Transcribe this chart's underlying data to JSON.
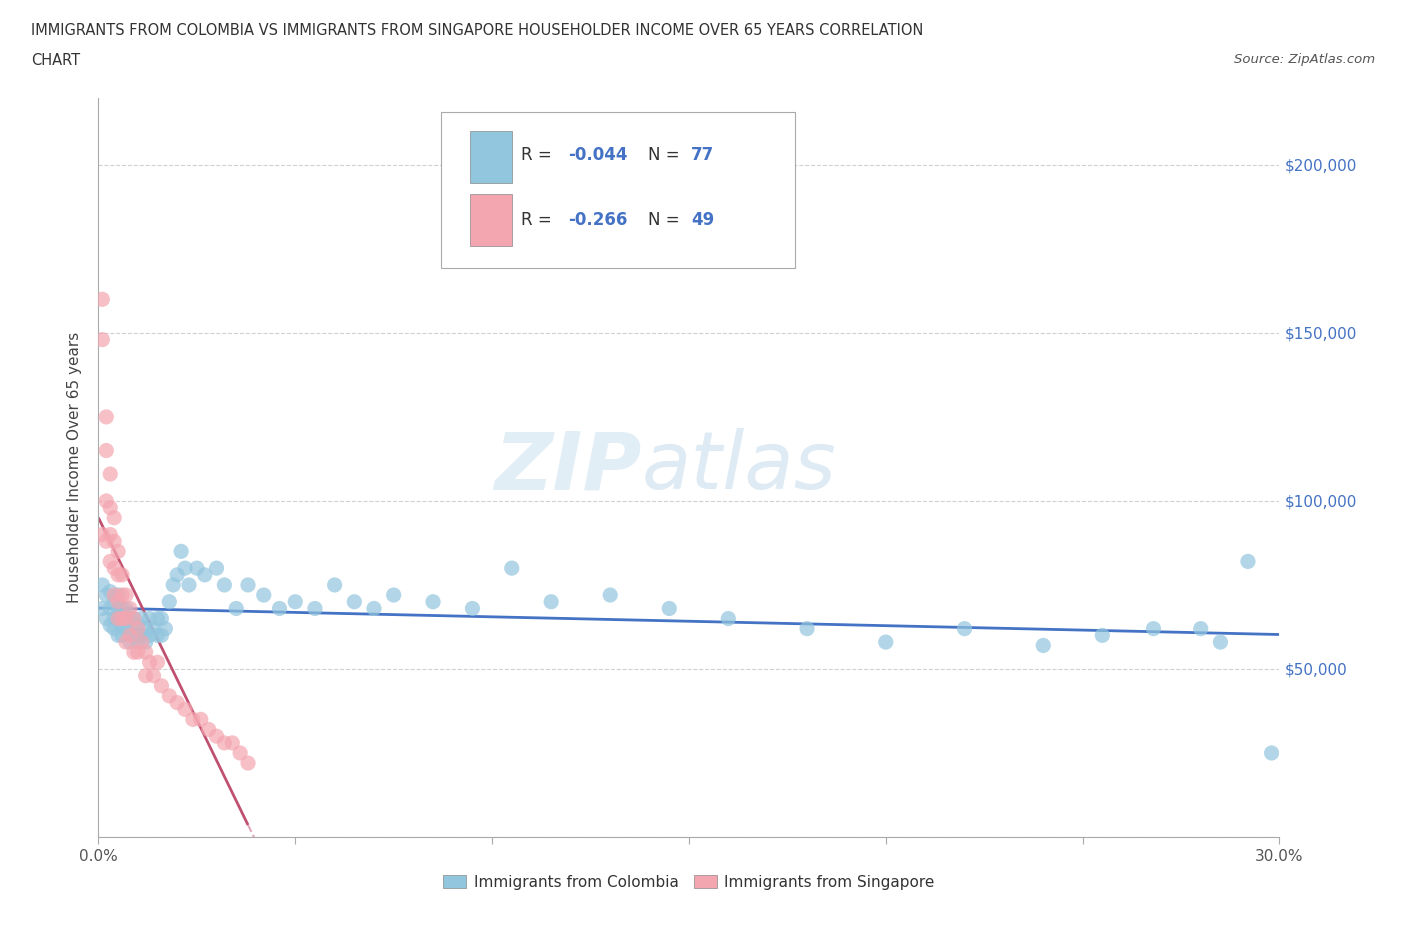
{
  "title_line1": "IMMIGRANTS FROM COLOMBIA VS IMMIGRANTS FROM SINGAPORE HOUSEHOLDER INCOME OVER 65 YEARS CORRELATION",
  "title_line2": "CHART",
  "source_text": "Source: ZipAtlas.com",
  "ylabel": "Householder Income Over 65 years",
  "xlim": [
    0.0,
    0.3
  ],
  "ylim": [
    0,
    220000
  ],
  "r_colombia": -0.044,
  "n_colombia": 77,
  "r_singapore": -0.266,
  "n_singapore": 49,
  "color_colombia": "#92C5DE",
  "color_singapore": "#F4A6B0",
  "trend_color_colombia": "#4472C4",
  "trend_color_singapore": "#C05070",
  "watermark_zip": "ZIP",
  "watermark_atlas": "atlas",
  "colombia_x": [
    0.001,
    0.001,
    0.002,
    0.002,
    0.003,
    0.003,
    0.003,
    0.004,
    0.004,
    0.004,
    0.005,
    0.005,
    0.005,
    0.005,
    0.006,
    0.006,
    0.006,
    0.007,
    0.007,
    0.007,
    0.008,
    0.008,
    0.008,
    0.009,
    0.009,
    0.01,
    0.01,
    0.01,
    0.011,
    0.011,
    0.012,
    0.012,
    0.013,
    0.013,
    0.014,
    0.015,
    0.015,
    0.016,
    0.016,
    0.017,
    0.018,
    0.019,
    0.02,
    0.021,
    0.022,
    0.023,
    0.025,
    0.027,
    0.03,
    0.032,
    0.035,
    0.038,
    0.042,
    0.046,
    0.05,
    0.055,
    0.06,
    0.065,
    0.07,
    0.075,
    0.085,
    0.095,
    0.105,
    0.115,
    0.13,
    0.145,
    0.16,
    0.18,
    0.2,
    0.22,
    0.24,
    0.255,
    0.268,
    0.28,
    0.285,
    0.292,
    0.298
  ],
  "colombia_y": [
    75000,
    68000,
    72000,
    65000,
    73000,
    68000,
    63000,
    70000,
    65000,
    62000,
    68000,
    72000,
    65000,
    60000,
    68000,
    63000,
    60000,
    68000,
    65000,
    62000,
    65000,
    62000,
    58000,
    65000,
    60000,
    63000,
    60000,
    58000,
    65000,
    60000,
    62000,
    58000,
    65000,
    60000,
    62000,
    65000,
    60000,
    65000,
    60000,
    62000,
    70000,
    75000,
    78000,
    85000,
    80000,
    75000,
    80000,
    78000,
    80000,
    75000,
    68000,
    75000,
    72000,
    68000,
    70000,
    68000,
    75000,
    70000,
    68000,
    72000,
    70000,
    68000,
    80000,
    70000,
    72000,
    68000,
    65000,
    62000,
    58000,
    62000,
    57000,
    60000,
    62000,
    62000,
    58000,
    82000,
    25000
  ],
  "singapore_x": [
    0.001,
    0.001,
    0.001,
    0.002,
    0.002,
    0.002,
    0.002,
    0.003,
    0.003,
    0.003,
    0.003,
    0.004,
    0.004,
    0.004,
    0.004,
    0.005,
    0.005,
    0.005,
    0.005,
    0.006,
    0.006,
    0.006,
    0.007,
    0.007,
    0.007,
    0.008,
    0.008,
    0.009,
    0.009,
    0.01,
    0.01,
    0.011,
    0.012,
    0.012,
    0.013,
    0.014,
    0.015,
    0.016,
    0.018,
    0.02,
    0.022,
    0.024,
    0.026,
    0.028,
    0.03,
    0.032,
    0.034,
    0.036,
    0.038
  ],
  "singapore_y": [
    160000,
    148000,
    90000,
    125000,
    115000,
    100000,
    88000,
    108000,
    98000,
    90000,
    82000,
    95000,
    88000,
    80000,
    72000,
    85000,
    78000,
    70000,
    65000,
    78000,
    72000,
    65000,
    72000,
    65000,
    58000,
    68000,
    60000,
    65000,
    55000,
    62000,
    55000,
    58000,
    55000,
    48000,
    52000,
    48000,
    52000,
    45000,
    42000,
    40000,
    38000,
    35000,
    35000,
    32000,
    30000,
    28000,
    28000,
    25000,
    22000
  ]
}
